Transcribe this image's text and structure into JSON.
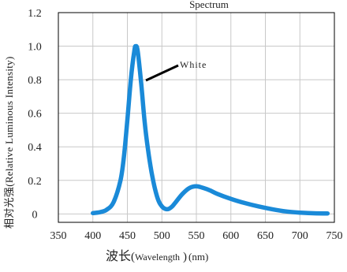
{
  "chart_data": {
    "type": "line",
    "title": "Spectrum",
    "xlabel_main": "波长",
    "xlabel_open": "(",
    "xlabel_unit": "Wavelength",
    "xlabel_close": ")",
    "xlabel_nm": "(nm)",
    "ylabel": "相对光强(Relative Luminous Intensity)",
    "xlim": [
      350,
      750
    ],
    "ylim": [
      -0.05,
      1.2
    ],
    "x_ticks": [
      "350",
      "400",
      "450",
      "500",
      "550",
      "600",
      "650",
      "700",
      "750"
    ],
    "y_ticks": [
      "0",
      "0.2",
      "0.4",
      "0.6",
      "0.8",
      "1.0",
      "1.2"
    ],
    "grid": true,
    "annotation": "White",
    "series": [
      {
        "name": "White",
        "color": "#1a8ad8",
        "x": [
          400,
          410,
          420,
          430,
          440,
          445,
          450,
          455,
          460,
          462,
          465,
          470,
          475,
          480,
          485,
          490,
          495,
          500,
          505,
          510,
          515,
          520,
          530,
          540,
          550,
          560,
          570,
          580,
          600,
          620,
          640,
          660,
          680,
          700,
          720,
          740
        ],
        "y": [
          0.005,
          0.01,
          0.025,
          0.07,
          0.2,
          0.34,
          0.56,
          0.8,
          0.97,
          1.0,
          0.97,
          0.78,
          0.55,
          0.38,
          0.25,
          0.15,
          0.08,
          0.045,
          0.03,
          0.03,
          0.045,
          0.07,
          0.12,
          0.155,
          0.165,
          0.155,
          0.14,
          0.12,
          0.09,
          0.065,
          0.045,
          0.028,
          0.015,
          0.008,
          0.004,
          0.003
        ]
      }
    ]
  }
}
